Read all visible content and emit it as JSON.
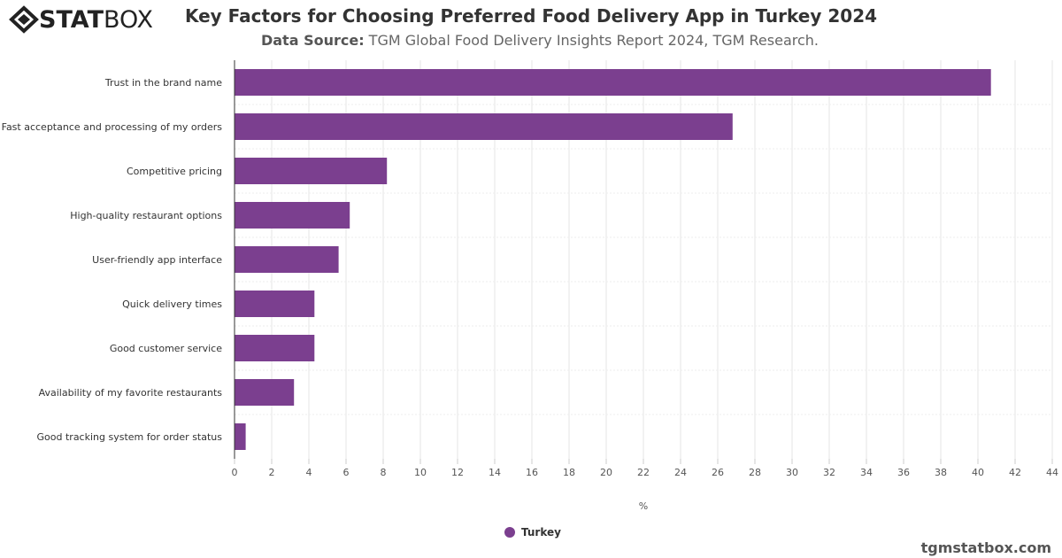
{
  "logo": {
    "text": "STATBOX"
  },
  "header": {
    "title": "Key Factors for Choosing Preferred Food Delivery App in Turkey 2024",
    "source_label": "Data Source:",
    "source_text": " TGM Global Food Delivery Insights Report 2024, TGM Research."
  },
  "footer": {
    "credit": "tgmstatbox.com"
  },
  "colors": {
    "bar": "#7b3f8f"
  },
  "chart_data": {
    "type": "bar",
    "orientation": "horizontal",
    "title": "Key Factors for Choosing Preferred Food Delivery App in Turkey 2024",
    "xlabel": "%",
    "ylabel": "",
    "xlim": [
      0,
      44
    ],
    "ticks": [
      0,
      2,
      4,
      6,
      8,
      10,
      12,
      14,
      16,
      18,
      20,
      22,
      24,
      26,
      28,
      30,
      32,
      34,
      36,
      38,
      40,
      42,
      44
    ],
    "grid": true,
    "legend": "bottom",
    "categories": [
      "Trust in the brand name",
      "Fast acceptance and processing of my orders",
      "Competitive pricing",
      "High-quality restaurant options",
      "User-friendly app interface",
      "Quick delivery times",
      "Good customer service",
      "Availability of my favorite restaurants",
      "Good tracking system for order status"
    ],
    "series": [
      {
        "name": "Turkey",
        "values": [
          40.7,
          26.8,
          8.2,
          6.2,
          5.6,
          4.3,
          4.3,
          3.2,
          0.6
        ]
      }
    ]
  }
}
